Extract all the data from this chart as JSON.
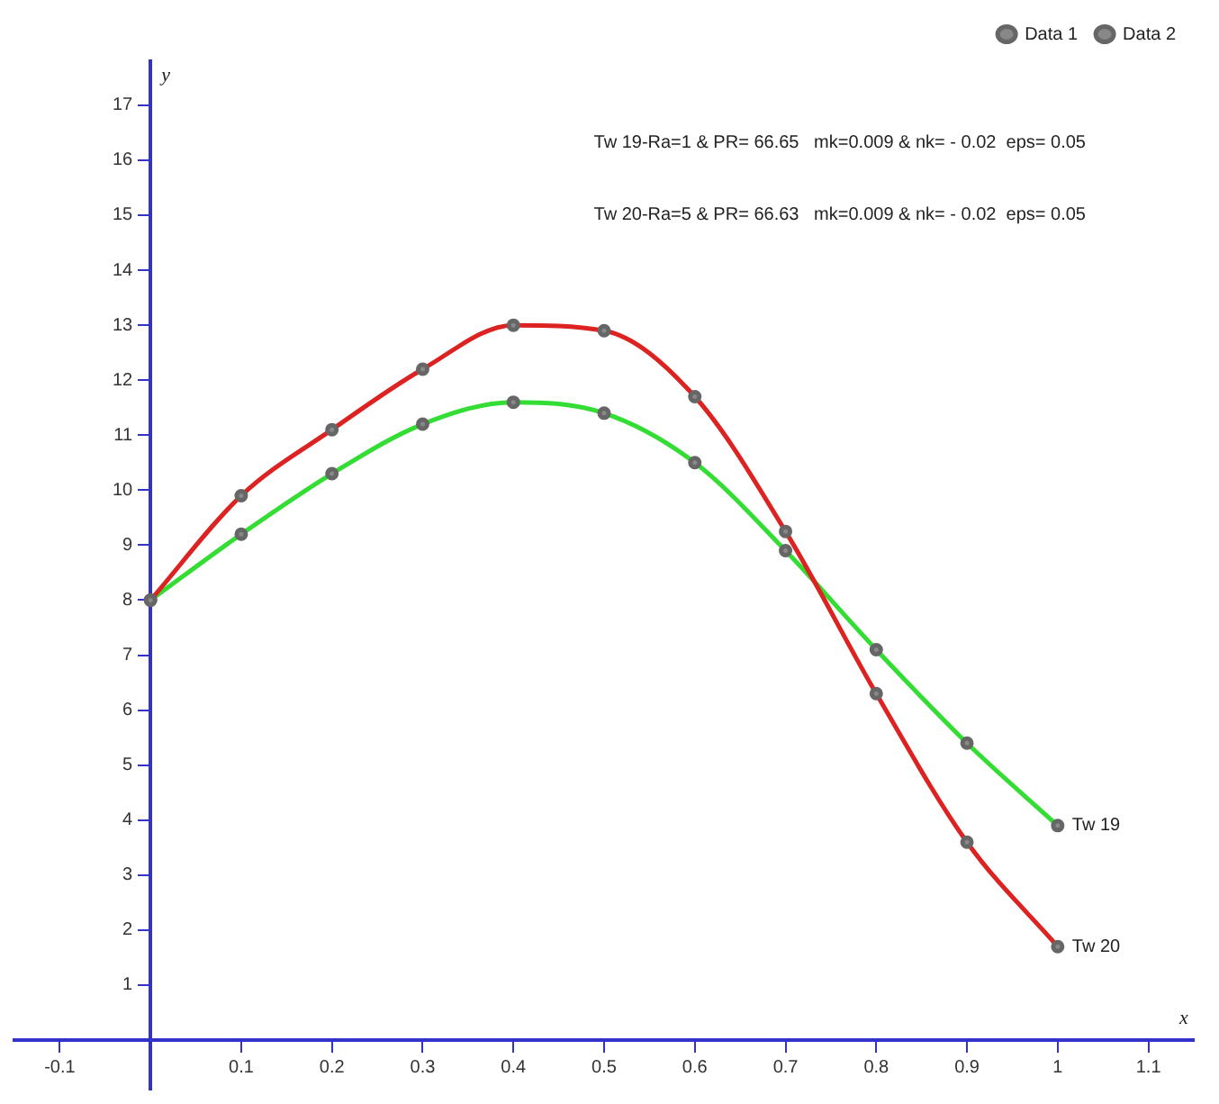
{
  "chart_data": {
    "type": "line",
    "xlabel": "x",
    "ylabel": "y",
    "x": [
      0,
      0.1,
      0.2,
      0.3,
      0.4,
      0.5,
      0.6,
      0.7,
      0.8,
      0.9,
      1
    ],
    "series": [
      {
        "name": "Data 1",
        "color": "#dd2222",
        "values": [
          8,
          9.9,
          11.1,
          12.2,
          13,
          12.9,
          11.7,
          9.25,
          6.3,
          3.6,
          1.7
        ]
      },
      {
        "name": "Data 2",
        "color": "#33dd33",
        "values": [
          8,
          9.2,
          10.3,
          11.2,
          11.6,
          11.4,
          10.5,
          8.9,
          7.1,
          5.4,
          3.9
        ]
      }
    ],
    "xlim": [
      -0.15,
      1.15
    ],
    "ylim": [
      -0.9,
      17.8
    ],
    "xticks": [
      -0.1,
      0.1,
      0.2,
      0.3,
      0.4,
      0.5,
      0.6,
      0.7,
      0.8,
      0.9,
      1,
      1.1
    ],
    "yticks": [
      1,
      2,
      3,
      4,
      5,
      6,
      7,
      8,
      9,
      10,
      11,
      12,
      13,
      14,
      15,
      16,
      17
    ],
    "annotations": [
      "Tw 19-Ra=1 & PR= 66.65   mk=0.009 & nk= - 0.02  eps= 0.05",
      "Tw 20-Ra=5 & PR= 66.63   mk=0.009 & nk= - 0.02  eps= 0.05",
      {
        "text": "Tw 19",
        "x": 1,
        "y": 3.9
      },
      {
        "text": "Tw 20",
        "x": 1,
        "y": 1.7
      }
    ],
    "grid": false,
    "legend": "top right",
    "marker": "circle",
    "line_style": "solid"
  }
}
